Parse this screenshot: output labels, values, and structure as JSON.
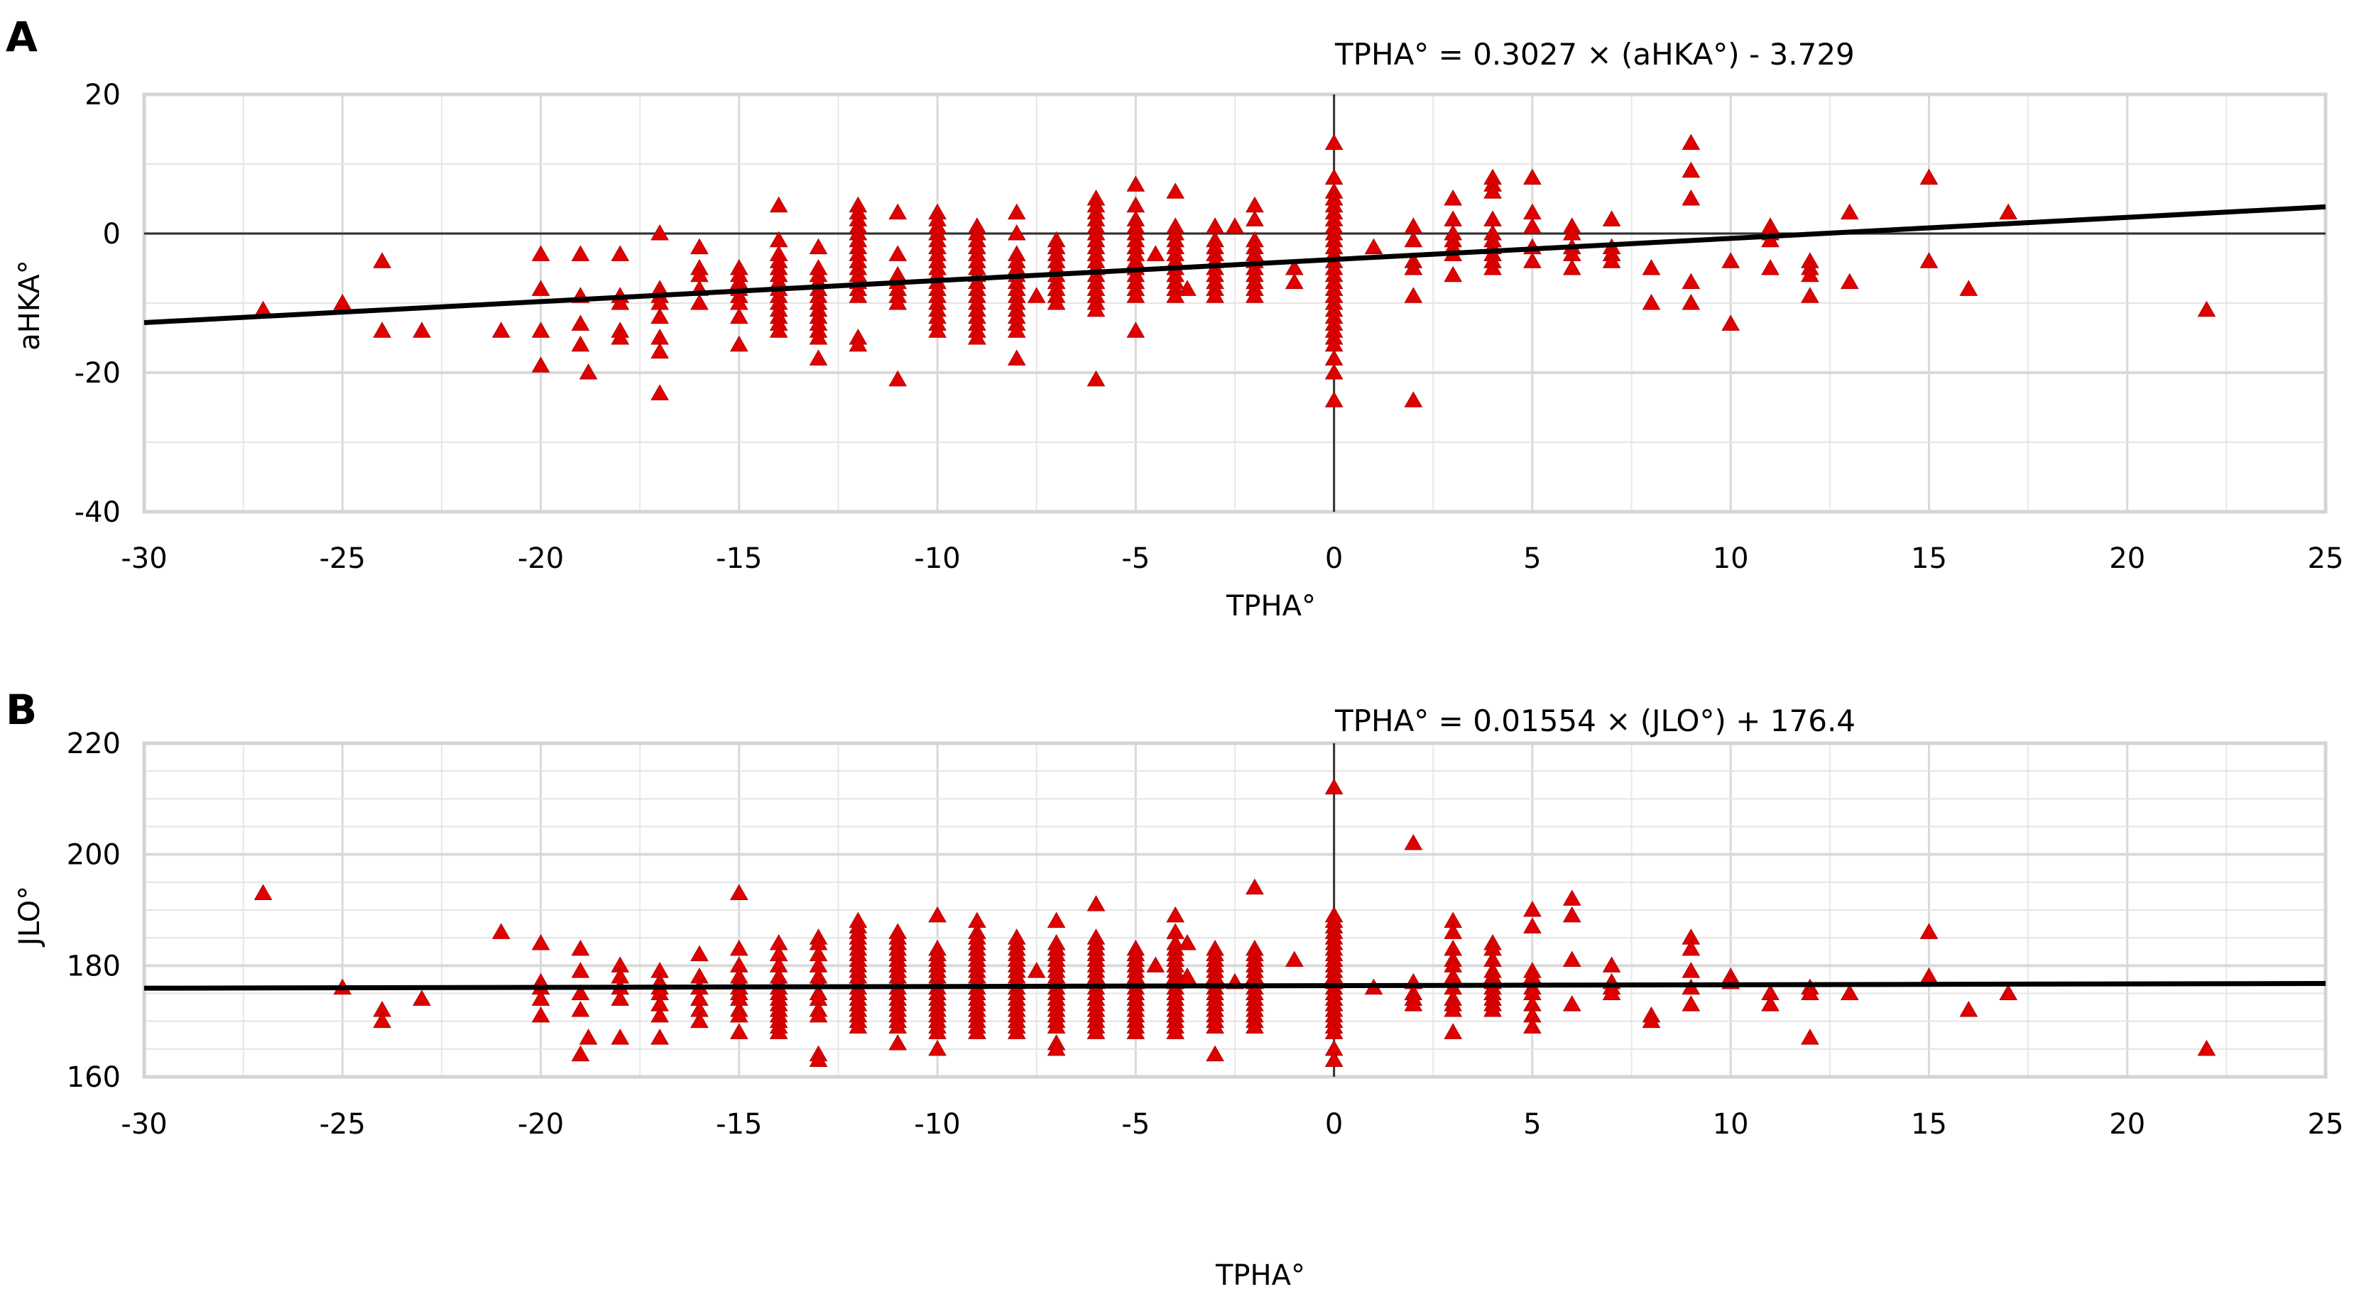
{
  "chart_data": [
    {
      "panel": "A",
      "type": "scatter",
      "title": "",
      "equation": "TPHA° = 0.3027 × (aHKA°)  - 3.729",
      "xlabel": "TPHA°",
      "ylabel": "aHKA°",
      "xlim": [
        -30,
        25
      ],
      "ylim": [
        -40,
        20
      ],
      "x_ticks": [
        -30,
        -25,
        -20,
        -15,
        -10,
        -5,
        0,
        5,
        10,
        15,
        20,
        25
      ],
      "y_ticks": [
        -40,
        -20,
        0,
        20
      ],
      "y_minor_step": 10,
      "x_minor_step": 2.5,
      "zero_lines": {
        "x": 0,
        "y": 0
      },
      "grid": true,
      "marker": "triangle",
      "marker_color": "#e00000",
      "trendline": {
        "slope": 0.3027,
        "intercept": -3.729,
        "color": "#000000"
      },
      "columns": [
        {
          "x": -27,
          "y": [
            -11
          ]
        },
        {
          "x": -25,
          "y": [
            -10
          ]
        },
        {
          "x": -24,
          "y": [
            -4,
            -14
          ]
        },
        {
          "x": -23,
          "y": [
            -14
          ]
        },
        {
          "x": -21,
          "y": [
            -14
          ]
        },
        {
          "x": -20,
          "y": [
            -3,
            -8,
            -14,
            -19
          ]
        },
        {
          "x": -19,
          "y": [
            -3,
            -9,
            -13,
            -16
          ]
        },
        {
          "x": -18.8,
          "y": [
            -20
          ]
        },
        {
          "x": -18,
          "y": [
            -3,
            -9,
            -10,
            -14,
            -15
          ]
        },
        {
          "x": -17,
          "y": [
            0,
            -8,
            -9,
            -10,
            -12,
            -15,
            -17,
            -23
          ]
        },
        {
          "x": -16,
          "y": [
            -2,
            -5,
            -6,
            -8,
            -10
          ]
        },
        {
          "x": -15,
          "y": [
            -5,
            -6,
            -7,
            -8,
            -9,
            -10,
            -12,
            -16
          ]
        },
        {
          "x": -14,
          "y": [
            4,
            -1,
            -3,
            -4,
            -5,
            -6,
            -7,
            -8,
            -9,
            -10,
            -11,
            -12,
            -13,
            -14
          ]
        },
        {
          "x": -13,
          "y": [
            -2,
            -5,
            -6,
            -7,
            -8,
            -9,
            -10,
            -11,
            -12,
            -13,
            -14,
            -15,
            -18
          ]
        },
        {
          "x": -12,
          "y": [
            4,
            3,
            2,
            1,
            0,
            -1,
            -2,
            -3,
            -4,
            -5,
            -6,
            -7,
            -8,
            -9,
            -15,
            -16
          ]
        },
        {
          "x": -11,
          "y": [
            3,
            -3,
            -6,
            -7,
            -8,
            -9,
            -10,
            -21
          ]
        },
        {
          "x": -10,
          "y": [
            3,
            2,
            1,
            0,
            -1,
            -2,
            -3,
            -4,
            -5,
            -6,
            -7,
            -8,
            -9,
            -10,
            -11,
            -12,
            -13,
            -14
          ]
        },
        {
          "x": -9,
          "y": [
            1,
            0,
            -1,
            -2,
            -3,
            -4,
            -5,
            -6,
            -7,
            -8,
            -9,
            -10,
            -11,
            -12,
            -13,
            -14,
            -15
          ]
        },
        {
          "x": -8,
          "y": [
            3,
            0,
            -3,
            -4,
            -5,
            -6,
            -7,
            -8,
            -9,
            -10,
            -11,
            -12,
            -13,
            -14,
            -18
          ]
        },
        {
          "x": -7.5,
          "y": [
            -9
          ]
        },
        {
          "x": -7,
          "y": [
            -1,
            -2,
            -3,
            -4,
            -5,
            -6,
            -7,
            -8,
            -9,
            -10
          ]
        },
        {
          "x": -6,
          "y": [
            5,
            4,
            3,
            2,
            1,
            0,
            -1,
            -2,
            -3,
            -4,
            -5,
            -6,
            -7,
            -8,
            -9,
            -10,
            -11,
            -21
          ]
        },
        {
          "x": -5,
          "y": [
            7,
            4,
            2,
            1,
            0,
            -1,
            -2,
            -3,
            -4,
            -5,
            -6,
            -7,
            -8,
            -9,
            -14
          ]
        },
        {
          "x": -4.5,
          "y": [
            -3
          ]
        },
        {
          "x": -4,
          "y": [
            6,
            1,
            0,
            -1,
            -2,
            -3,
            -4,
            -5,
            -6,
            -7,
            -8,
            -9
          ]
        },
        {
          "x": -3.7,
          "y": [
            -8
          ]
        },
        {
          "x": -3,
          "y": [
            1,
            -1,
            -2,
            -3,
            -4,
            -5,
            -6,
            -7,
            -8,
            -9
          ]
        },
        {
          "x": -2.5,
          "y": [
            1
          ]
        },
        {
          "x": -2,
          "y": [
            4,
            2,
            -1,
            -2,
            -3,
            -4,
            -5,
            -6,
            -7,
            -8,
            -9
          ]
        },
        {
          "x": -1,
          "y": [
            -5,
            -7
          ]
        },
        {
          "x": 0,
          "y": [
            13,
            8,
            6,
            5,
            4,
            3,
            2,
            1,
            0,
            -1,
            -2,
            -3,
            -4,
            -5,
            -6,
            -7,
            -8,
            -9,
            -10,
            -11,
            -12,
            -13,
            -14,
            -15,
            -16,
            -18,
            -20,
            -24
          ]
        },
        {
          "x": 1,
          "y": [
            -2
          ]
        },
        {
          "x": 2,
          "y": [
            1,
            -1,
            -4,
            -5,
            -9,
            -24
          ]
        },
        {
          "x": 3,
          "y": [
            5,
            2,
            0,
            -1,
            -2,
            -3,
            -6
          ]
        },
        {
          "x": 4,
          "y": [
            8,
            7,
            6,
            2,
            0,
            -1,
            -2,
            -3,
            -4,
            -5
          ]
        },
        {
          "x": 5,
          "y": [
            8,
            3,
            1,
            -2,
            -4
          ]
        },
        {
          "x": 6,
          "y": [
            1,
            0,
            -2,
            -3,
            -5
          ]
        },
        {
          "x": 7,
          "y": [
            2,
            -2,
            -3,
            -4
          ]
        },
        {
          "x": 8,
          "y": [
            -5,
            -10
          ]
        },
        {
          "x": 9,
          "y": [
            13,
            9,
            5,
            -7,
            -10
          ]
        },
        {
          "x": 10,
          "y": [
            -4,
            -13
          ]
        },
        {
          "x": 11,
          "y": [
            1,
            0,
            -1,
            -5
          ]
        },
        {
          "x": 12,
          "y": [
            -4,
            -5,
            -6,
            -9
          ]
        },
        {
          "x": 13,
          "y": [
            3,
            -7
          ]
        },
        {
          "x": 15,
          "y": [
            8,
            -4
          ]
        },
        {
          "x": 16,
          "y": [
            -8
          ]
        },
        {
          "x": 17,
          "y": [
            3
          ]
        },
        {
          "x": 22,
          "y": [
            -11
          ]
        }
      ]
    },
    {
      "panel": "B",
      "type": "scatter",
      "title": "",
      "equation": "TPHA° = 0.01554 × (JLO°) + 176.4",
      "xlabel": "TPHA°",
      "ylabel": "JLO°",
      "xlim": [
        -30,
        25
      ],
      "ylim": [
        160,
        220
      ],
      "x_ticks": [
        -30,
        -25,
        -20,
        -15,
        -10,
        -5,
        0,
        5,
        10,
        15,
        20,
        25
      ],
      "y_ticks": [
        160,
        180,
        200,
        220
      ],
      "y_minor_step": 5,
      "x_minor_step": 2.5,
      "zero_lines": {
        "x": 0
      },
      "grid": true,
      "marker": "triangle",
      "marker_color": "#e00000",
      "trendline": {
        "slope": 0.01554,
        "intercept": 176.4,
        "color": "#000000"
      },
      "columns": [
        {
          "x": -27,
          "y": [
            193
          ]
        },
        {
          "x": -25,
          "y": [
            176
          ]
        },
        {
          "x": -24,
          "y": [
            172,
            170
          ]
        },
        {
          "x": -23,
          "y": [
            174
          ]
        },
        {
          "x": -21,
          "y": [
            186
          ]
        },
        {
          "x": -20,
          "y": [
            184,
            177,
            176,
            174,
            171
          ]
        },
        {
          "x": -19,
          "y": [
            183,
            179,
            175,
            172,
            164
          ]
        },
        {
          "x": -18.8,
          "y": [
            167
          ]
        },
        {
          "x": -18,
          "y": [
            180,
            178,
            176,
            174,
            167
          ]
        },
        {
          "x": -17,
          "y": [
            179,
            177,
            176,
            175,
            173,
            171,
            167
          ]
        },
        {
          "x": -16,
          "y": [
            182,
            178,
            176,
            174,
            172,
            170
          ]
        },
        {
          "x": -15,
          "y": [
            193,
            183,
            180,
            178,
            177,
            176,
            175,
            174,
            172,
            171,
            168
          ]
        },
        {
          "x": -14,
          "y": [
            184,
            182,
            180,
            178,
            177,
            176,
            175,
            174,
            173,
            172,
            171,
            170,
            169,
            168
          ]
        },
        {
          "x": -13,
          "y": [
            185,
            184,
            182,
            180,
            178,
            177,
            175,
            174,
            172,
            171,
            164,
            163
          ]
        },
        {
          "x": -12,
          "y": [
            188,
            187,
            186,
            185,
            184,
            183,
            182,
            181,
            180,
            179,
            178,
            177,
            176,
            175,
            174,
            173,
            172,
            171,
            170,
            169
          ]
        },
        {
          "x": -11,
          "y": [
            186,
            185,
            184,
            183,
            182,
            181,
            180,
            179,
            178,
            177,
            176,
            175,
            174,
            173,
            172,
            171,
            170,
            169,
            166
          ]
        },
        {
          "x": -10,
          "y": [
            189,
            183,
            182,
            181,
            180,
            179,
            178,
            177,
            176,
            175,
            174,
            173,
            172,
            171,
            170,
            169,
            168,
            165
          ]
        },
        {
          "x": -9,
          "y": [
            188,
            186,
            185,
            184,
            183,
            182,
            181,
            180,
            179,
            178,
            177,
            176,
            175,
            174,
            173,
            172,
            171,
            170,
            169,
            168
          ]
        },
        {
          "x": -8,
          "y": [
            185,
            184,
            183,
            182,
            181,
            180,
            179,
            178,
            177,
            176,
            175,
            174,
            173,
            172,
            171,
            170,
            169,
            168
          ]
        },
        {
          "x": -7.5,
          "y": [
            179
          ]
        },
        {
          "x": -7,
          "y": [
            188,
            184,
            183,
            182,
            181,
            180,
            179,
            178,
            177,
            176,
            175,
            174,
            173,
            172,
            171,
            170,
            169,
            166,
            165
          ]
        },
        {
          "x": -6,
          "y": [
            191,
            185,
            184,
            183,
            182,
            181,
            180,
            179,
            178,
            177,
            176,
            175,
            174,
            173,
            172,
            171,
            170,
            169,
            168
          ]
        },
        {
          "x": -5,
          "y": [
            183,
            182,
            181,
            180,
            179,
            178,
            177,
            176,
            175,
            174,
            173,
            172,
            171,
            170,
            169,
            168
          ]
        },
        {
          "x": -4.5,
          "y": [
            180
          ]
        },
        {
          "x": -4,
          "y": [
            189,
            186,
            184,
            183,
            182,
            181,
            180,
            179,
            178,
            177,
            176,
            175,
            174,
            173,
            172,
            171,
            170,
            169,
            168
          ]
        },
        {
          "x": -3.7,
          "y": [
            184,
            178
          ]
        },
        {
          "x": -3,
          "y": [
            183,
            182,
            181,
            180,
            179,
            178,
            177,
            176,
            175,
            174,
            173,
            172,
            171,
            170,
            169,
            164
          ]
        },
        {
          "x": -2.5,
          "y": [
            177
          ]
        },
        {
          "x": -2,
          "y": [
            194,
            183,
            182,
            181,
            180,
            179,
            178,
            177,
            176,
            175,
            174,
            173,
            172,
            171,
            170,
            169
          ]
        },
        {
          "x": -1,
          "y": [
            181
          ]
        },
        {
          "x": 0,
          "y": [
            212,
            189,
            188,
            187,
            186,
            185,
            184,
            183,
            182,
            181,
            180,
            179,
            178,
            177,
            176,
            175,
            174,
            173,
            172,
            171,
            170,
            169,
            168,
            165,
            163
          ]
        },
        {
          "x": 1,
          "y": [
            176
          ]
        },
        {
          "x": 2,
          "y": [
            202,
            177,
            175,
            174,
            173
          ]
        },
        {
          "x": 3,
          "y": [
            188,
            186,
            183,
            181,
            180,
            178,
            176,
            174,
            173,
            172,
            168
          ]
        },
        {
          "x": 4,
          "y": [
            184,
            183,
            181,
            179,
            178,
            177,
            176,
            175,
            174,
            173,
            172
          ]
        },
        {
          "x": 5,
          "y": [
            190,
            187,
            179,
            178,
            176,
            175,
            173,
            171,
            169
          ]
        },
        {
          "x": 6,
          "y": [
            192,
            189,
            181,
            173
          ]
        },
        {
          "x": 7,
          "y": [
            180,
            177,
            176,
            175
          ]
        },
        {
          "x": 8,
          "y": [
            171,
            170
          ]
        },
        {
          "x": 9,
          "y": [
            185,
            183,
            179,
            176,
            173
          ]
        },
        {
          "x": 10,
          "y": [
            178,
            177
          ]
        },
        {
          "x": 11,
          "y": [
            175,
            173
          ]
        },
        {
          "x": 12,
          "y": [
            176,
            175,
            167
          ]
        },
        {
          "x": 13,
          "y": [
            175
          ]
        },
        {
          "x": 15,
          "y": [
            186,
            178
          ]
        },
        {
          "x": 16,
          "y": [
            172
          ]
        },
        {
          "x": 17,
          "y": [
            175
          ]
        },
        {
          "x": 22,
          "y": [
            165
          ]
        }
      ]
    }
  ]
}
